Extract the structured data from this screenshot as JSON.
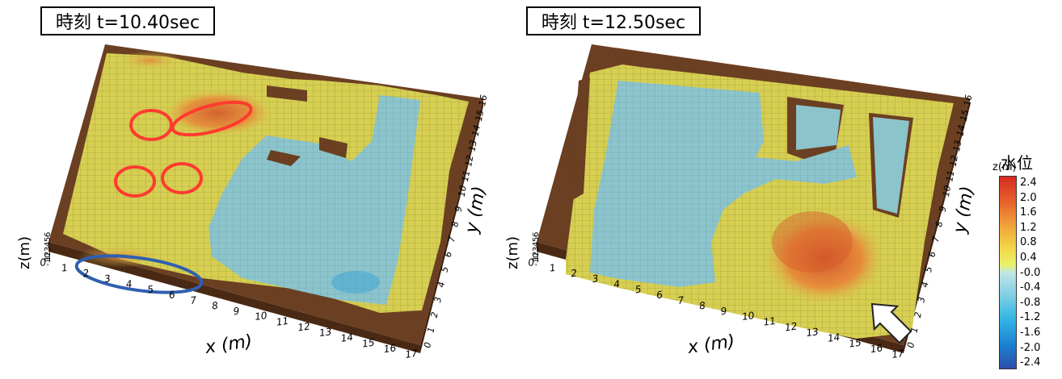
{
  "panels": [
    {
      "title": "時刻 t=10.40sec",
      "x_label": "x (m)",
      "y_label": "y (m)",
      "z_label": "z(m)",
      "x_ticks": [
        "0",
        "1",
        "2",
        "3",
        "4",
        "5",
        "6",
        "7",
        "8",
        "9",
        "10",
        "11",
        "12",
        "13",
        "14",
        "15",
        "16",
        "17"
      ],
      "y_ticks": [
        "0",
        "1",
        "2",
        "3",
        "4",
        "5",
        "6",
        "7",
        "8",
        "9",
        "10",
        "11",
        "12",
        "13",
        "14",
        "15",
        "16"
      ],
      "z_ticks": [
        "-10",
        "1",
        "2",
        "3",
        "4",
        "5",
        "6"
      ]
    },
    {
      "title": "時刻 t=12.50sec",
      "x_label": "x (m)",
      "y_label": "y (m)",
      "z_label": "z(m)",
      "x_ticks": [
        "0",
        "1",
        "2",
        "3",
        "4",
        "5",
        "6",
        "7",
        "8",
        "9",
        "10",
        "11",
        "12",
        "13",
        "14",
        "15",
        "16",
        "17"
      ],
      "y_ticks": [
        "0",
        "1",
        "2",
        "3",
        "4",
        "5",
        "6",
        "7",
        "8",
        "9",
        "10",
        "11",
        "12",
        "13",
        "14",
        "15",
        "16"
      ],
      "z_ticks": [
        "-10",
        "1",
        "2",
        "3",
        "4",
        "5",
        "6"
      ]
    }
  ],
  "legend": {
    "title": "水位",
    "unit": "z(m)",
    "ticks": [
      "2.4",
      "2.0",
      "1.6",
      "1.2",
      "0.8",
      "0.4",
      "-0.0",
      "-0.4",
      "-0.8",
      "-1.2",
      "-1.6",
      "-2.0",
      "-2.4"
    ]
  },
  "colors": {
    "base": "#6b3f22",
    "base_dark": "#4a2a14",
    "water_yellow": "#d8d050",
    "water_blue": "#8cc4cc",
    "water_orange": "#e08a3a",
    "highlight_red": "#ff3b2f",
    "highlight_blue": "#2f5fb0",
    "arrow": "#ffffff"
  }
}
